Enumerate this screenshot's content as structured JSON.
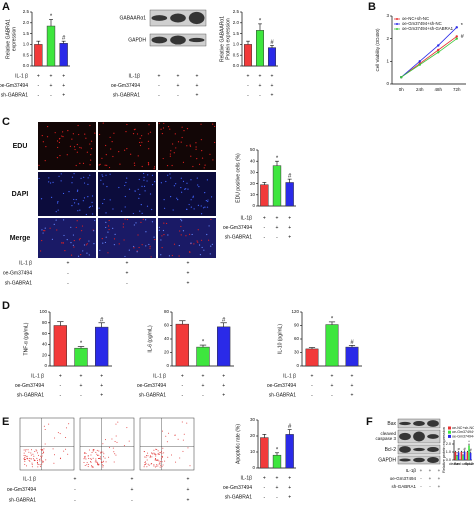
{
  "panels": {
    "A": {
      "letter": "A",
      "blot": {
        "bands": [
          "GABAARα1",
          "GAPDH"
        ],
        "conditions": [
          {
            "name": "IL-1β",
            "signs": [
              "+",
              "+",
              "+"
            ]
          },
          {
            "name": "oe-Gm37494",
            "signs": [
              "-",
              "+",
              "+"
            ]
          },
          {
            "name": "sh-GABRA1",
            "signs": [
              "-",
              "-",
              "+"
            ]
          }
        ]
      }
    },
    "B": {
      "letter": "B"
    },
    "C": {
      "letter": "C",
      "images": {
        "rows": [
          "EDU",
          "DAPI",
          "Merge"
        ],
        "conditions": [
          {
            "name": "IL-1 β",
            "signs": [
              "+",
              "+",
              "+"
            ]
          },
          {
            "name": "oe-Gm37494",
            "signs": [
              "-",
              "+",
              "+"
            ]
          },
          {
            "name": "sh-GABRA1",
            "signs": [
              "-",
              "-",
              "+"
            ]
          }
        ]
      }
    },
    "D": {
      "letter": "D"
    },
    "E": {
      "letter": "E",
      "images": {
        "conditions": [
          {
            "name": "IL-1 β",
            "signs": [
              "+",
              "+",
              "+"
            ]
          },
          {
            "name": "oe-Gm37494",
            "signs": [
              "-",
              "+",
              "+"
            ]
          },
          {
            "name": "sh-GABRA1",
            "signs": [
              "-",
              "-",
              "+"
            ]
          }
        ]
      }
    },
    "F": {
      "letter": "F",
      "blot": {
        "bands": [
          "Bax",
          [
            "cleaved",
            "caspase 3"
          ],
          "Bcl-2",
          "GAPDH"
        ],
        "conditions": [
          {
            "name": "IL-1β",
            "signs": [
              "+",
              "+",
              "+"
            ]
          },
          {
            "name": "oe-Gm37494",
            "signs": [
              "-",
              "+",
              "+"
            ]
          },
          {
            "name": "sh-GABRA1",
            "signs": [
              "-",
              "-",
              "+"
            ]
          }
        ]
      }
    }
  },
  "chart_data": [
    {
      "type": "bar",
      "ylabel": [
        "Relative GABRA1",
        "expression"
      ],
      "values": [
        1.0,
        1.85,
        1.05
      ],
      "errors": [
        0.15,
        0.3,
        0.1
      ],
      "colors": [
        "#f23a3a",
        "#3ee63e",
        "#2a2ae8"
      ],
      "annotations": [
        null,
        "*",
        "#"
      ],
      "ylim": [
        0,
        2.5
      ],
      "yticks": [
        {
          "value": 0,
          "label": "0.0"
        },
        0.5,
        {
          "value": 1,
          "label": "1.0"
        },
        1.5,
        {
          "value": 2,
          "label": "2.0"
        },
        2.5
      ],
      "conditions": [
        {
          "name": "IL-1 β",
          "signs": [
            "+",
            "+",
            "+"
          ]
        },
        {
          "name": "oe-Gm37494",
          "signs": [
            "-",
            "+",
            "+"
          ]
        },
        {
          "name": "sh-GABRA1",
          "signs": [
            "-",
            "-",
            "+"
          ]
        }
      ]
    },
    {
      "type": "bar",
      "ylabel": [
        "Relative GABAARα1",
        "Protein expression"
      ],
      "values": [
        1.0,
        1.65,
        0.85
      ],
      "errors": [
        0.15,
        0.3,
        0.1
      ],
      "colors": [
        "#f23a3a",
        "#3ee63e",
        "#2a2ae8"
      ],
      "annotations": [
        null,
        "*",
        "#"
      ],
      "ylim": [
        0,
        2.5
      ],
      "yticks": [
        {
          "value": 0,
          "label": "0.0"
        },
        0.5,
        {
          "value": 1,
          "label": "1.0"
        },
        1.5,
        {
          "value": 2,
          "label": "2.0"
        },
        2.5
      ],
      "conditions": [
        {
          "name": null,
          "signs": [
            "+",
            "+",
            "+"
          ]
        },
        {
          "name": null,
          "signs": [
            "-",
            "+",
            "+"
          ]
        },
        {
          "name": null,
          "signs": [
            "-",
            "-",
            "+"
          ]
        }
      ]
    },
    {
      "type": "line",
      "ylabel": "Cell Viability (OD450)",
      "categories": [
        "0h",
        "24h",
        "48h",
        "72h"
      ],
      "series": [
        {
          "name": "oe-NC+sh-NC",
          "color": "#e83030",
          "values": [
            0.3,
            0.9,
            1.5,
            2.1
          ]
        },
        {
          "name": "oe-Gm37494+sh-NC",
          "color": "#2a2ae8",
          "values": [
            0.3,
            1.0,
            1.7,
            2.5
          ]
        },
        {
          "name": "oe-Gm37494+sh-GABRA1",
          "color": "#3ec83e",
          "values": [
            0.3,
            0.85,
            1.4,
            2.0
          ]
        }
      ],
      "annotations": [
        "*",
        "#"
      ],
      "ylim": [
        0,
        3
      ],
      "yticks": [
        0,
        1,
        2,
        3
      ]
    },
    {
      "type": "bar",
      "ylabel": "EDU positive cells (%)",
      "values": [
        19,
        36,
        21
      ],
      "errors": [
        2,
        4,
        3
      ],
      "colors": [
        "#f23a3a",
        "#3ee63e",
        "#2a2ae8"
      ],
      "annotations": [
        null,
        "*",
        "#"
      ],
      "ylim": [
        0,
        50
      ],
      "yticks": [
        0,
        10,
        20,
        30,
        40,
        50
      ],
      "conditions": [
        {
          "name": "IL-1β",
          "signs": [
            "+",
            "+",
            "+"
          ]
        },
        {
          "name": "oe-Gm37494",
          "signs": [
            "-",
            "+",
            "+"
          ]
        },
        {
          "name": "sh-GABRA1",
          "signs": [
            "-",
            "-",
            "+"
          ]
        }
      ]
    },
    {
      "type": "bar",
      "ylabel": "TNF-α (pg/mL)",
      "values": [
        75,
        33,
        72
      ],
      "errors": [
        7,
        3,
        8
      ],
      "colors": [
        "#f23a3a",
        "#3ee63e",
        "#2a2ae8"
      ],
      "annotations": [
        null,
        "*",
        "#"
      ],
      "ylim": [
        0,
        100
      ],
      "yticks": [
        0,
        20,
        40,
        60,
        80,
        100
      ],
      "conditions": [
        {
          "name": "IL-1 β",
          "signs": [
            "+",
            "+",
            "+"
          ]
        },
        {
          "name": "oe-Gm37494",
          "signs": [
            "-",
            "+",
            "+"
          ]
        },
        {
          "name": "sh-GABRA1",
          "signs": [
            "-",
            "-",
            "+"
          ]
        }
      ]
    },
    {
      "type": "bar",
      "ylabel": "IL-6 (pg/mL)",
      "values": [
        62,
        28,
        58
      ],
      "errors": [
        5,
        3,
        6
      ],
      "colors": [
        "#f23a3a",
        "#3ee63e",
        "#2a2ae8"
      ],
      "annotations": [
        null,
        "*",
        "#"
      ],
      "ylim": [
        0,
        80
      ],
      "yticks": [
        0,
        20,
        40,
        60,
        80
      ],
      "conditions": [
        {
          "name": "IL-1 β",
          "signs": [
            "+",
            "+",
            "+"
          ]
        },
        {
          "name": "oe-Gm37494",
          "signs": [
            "-",
            "+",
            "+"
          ]
        },
        {
          "name": "sh-GABRA1",
          "signs": [
            "-",
            "-",
            "+"
          ]
        }
      ]
    },
    {
      "type": "bar",
      "ylabel": "IL-10 (pg/mL)",
      "values": [
        38,
        92,
        42
      ],
      "errors": [
        3,
        6,
        4
      ],
      "colors": [
        "#f23a3a",
        "#3ee63e",
        "#2a2ae8"
      ],
      "annotations": [
        null,
        "*",
        "#"
      ],
      "ylim": [
        0,
        120
      ],
      "yticks": [
        0,
        30,
        60,
        90,
        120
      ],
      "conditions": [
        {
          "name": "IL-1 β",
          "signs": [
            "+",
            "+",
            "+"
          ]
        },
        {
          "name": "oe-Gm37494",
          "signs": [
            "-",
            "+",
            "+"
          ]
        },
        {
          "name": "sh-GABRA1",
          "signs": [
            "-",
            "-",
            "+"
          ]
        }
      ]
    },
    {
      "type": "bar",
      "ylabel": "Apoptotic rate (%)",
      "values": [
        19,
        8,
        21
      ],
      "errors": [
        2,
        1.5,
        3
      ],
      "colors": [
        "#f23a3a",
        "#3ee63e",
        "#2a2ae8"
      ],
      "annotations": [
        null,
        "*",
        "#"
      ],
      "ylim": [
        0,
        30
      ],
      "yticks": [
        0,
        10,
        20,
        30
      ],
      "conditions": [
        {
          "name": "IL-1β",
          "signs": [
            "+",
            "+",
            "+"
          ]
        },
        {
          "name": "oe-Gm37494",
          "signs": [
            "-",
            "+",
            "+"
          ]
        },
        {
          "name": "sh-GABRA1",
          "signs": [
            "-",
            "-",
            "+"
          ]
        }
      ]
    },
    {
      "type": "grouped_bar",
      "ylabel": "Relative protein expression",
      "categories": [
        "Bax",
        "cleaved caspase 3",
        "Bcl-2"
      ],
      "series": [
        {
          "name": "oe-NC+sh-NC",
          "color": "#e83030",
          "values": [
            1.0,
            1.0,
            1.0
          ],
          "errors": [
            0.1,
            0.1,
            0.1
          ]
        },
        {
          "name": "oe-Gm37494+sh-NC",
          "color": "#3ee63e",
          "values": [
            0.5,
            0.55,
            1.8
          ],
          "errors": [
            0.1,
            0.1,
            0.2
          ],
          "annotations": [
            "*",
            "*",
            "*"
          ]
        },
        {
          "name": "oe-Gm37494+sh-GABRA1",
          "color": "#2a2ae8",
          "values": [
            0.95,
            1.05,
            0.9
          ],
          "errors": [
            0.1,
            0.1,
            0.1
          ],
          "annotations": [
            "#",
            "#",
            "#"
          ]
        }
      ],
      "ylim": [
        0,
        2.5
      ],
      "yticks": [
        {
          "value": 0,
          "label": "0.0"
        },
        {
          "value": 1,
          "label": "1.0"
        },
        {
          "value": 2,
          "label": "2.0"
        }
      ]
    }
  ]
}
